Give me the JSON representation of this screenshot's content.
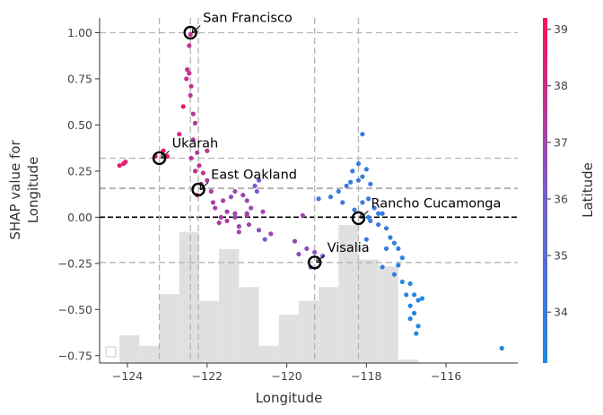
{
  "chart_data": {
    "type": "scatter",
    "title": "",
    "xlabel": "Longitude",
    "ylabel_lines": [
      "SHAP value for",
      "Longitude"
    ],
    "xlim": [
      -124.7,
      -114.2
    ],
    "ylim": [
      -0.79,
      1.08
    ],
    "x_ticks": [
      -124,
      -122,
      -120,
      -118,
      -116
    ],
    "x_tick_labels": [
      "−124",
      "−122",
      "−120",
      "−118",
      "−116"
    ],
    "y_ticks": [
      -0.75,
      -0.5,
      -0.25,
      0.0,
      0.25,
      0.5,
      0.75,
      1.0
    ],
    "y_tick_labels": [
      "−0.75",
      "−0.50",
      "−0.25",
      "0.00",
      "0.25",
      "0.50",
      "0.75",
      "1.00"
    ],
    "baseline_y": 0.0,
    "colorbar": {
      "label": "Latitude",
      "range": [
        33.1,
        39.2
      ],
      "ticks": [
        34,
        35,
        36,
        37,
        38,
        39
      ],
      "tick_labels": [
        "34",
        "35",
        "36",
        "37",
        "38",
        "39"
      ],
      "color_low": "#1e88e5",
      "color_high": "#ff0d57"
    },
    "highlight_points": [
      {
        "label": "San Francisco",
        "x": -122.42,
        "y": 1.0,
        "ref_y": 1.0
      },
      {
        "label": "Ukarah",
        "x": -123.2,
        "y": 0.32,
        "ref_y": 0.32
      },
      {
        "label": "East Oakland",
        "x": -122.22,
        "y": 0.15,
        "ref_y": 0.155
      },
      {
        "label": "Rancho Cucamonga",
        "x": -118.2,
        "y": -0.005,
        "ref_y": 0.158
      },
      {
        "label": "Visalia",
        "x": -119.3,
        "y": -0.245,
        "ref_y": -0.245
      }
    ],
    "histogram": {
      "edges": [
        -124.2,
        -123.7,
        -123.2,
        -122.7,
        -122.2,
        -121.7,
        -121.2,
        -120.7,
        -120.2,
        -119.7,
        -119.2,
        -118.7,
        -118.2,
        -117.7,
        -117.2,
        -116.7
      ],
      "heights": [
        0.08,
        0.05,
        0.2,
        0.38,
        0.18,
        0.33,
        0.22,
        0.05,
        0.14,
        0.18,
        0.22,
        0.4,
        0.3,
        0.28,
        0.01
      ],
      "color": "#e0e0e0"
    },
    "series": [
      {
        "points": [
          [
            -124.1,
            0.29,
            38.7
          ],
          [
            -124.2,
            0.28,
            38.6
          ],
          [
            -124.05,
            0.3,
            38.4
          ],
          [
            -123.3,
            0.33,
            38.6
          ],
          [
            -123.1,
            0.36,
            38.9
          ],
          [
            -123.0,
            0.33,
            38.5
          ],
          [
            -122.7,
            0.45,
            38.3
          ],
          [
            -122.6,
            0.6,
            38.7
          ],
          [
            -122.52,
            0.75,
            37.8
          ],
          [
            -122.5,
            0.8,
            37.8
          ],
          [
            -122.45,
            0.78,
            37.9
          ],
          [
            -122.42,
            0.99,
            37.8
          ],
          [
            -122.45,
            0.93,
            37.7
          ],
          [
            -122.4,
            0.71,
            37.8
          ],
          [
            -122.42,
            0.66,
            37.5
          ],
          [
            -122.35,
            0.56,
            37.6
          ],
          [
            -122.3,
            0.51,
            37.5
          ],
          [
            -122.35,
            0.42,
            37.4
          ],
          [
            -122.25,
            0.35,
            37.4
          ],
          [
            -122.4,
            0.32,
            37.7
          ],
          [
            -122.2,
            0.28,
            37.8
          ],
          [
            -122.1,
            0.24,
            37.9
          ],
          [
            -122.0,
            0.36,
            37.7
          ],
          [
            -122.3,
            0.25,
            37.6
          ],
          [
            -122.15,
            0.18,
            37.5
          ],
          [
            -122.25,
            0.12,
            37.8
          ],
          [
            -122.0,
            0.2,
            37.3
          ],
          [
            -121.9,
            0.14,
            37.35
          ],
          [
            -121.85,
            0.08,
            37.3
          ],
          [
            -121.6,
            0.09,
            37.3
          ],
          [
            -121.4,
            0.11,
            36.7
          ],
          [
            -121.3,
            0.14,
            36.9
          ],
          [
            -121.1,
            0.12,
            37.0
          ],
          [
            -121.0,
            0.09,
            36.8
          ],
          [
            -121.5,
            0.03,
            37.2
          ],
          [
            -121.8,
            0.05,
            37.2
          ],
          [
            -121.3,
            0.0,
            36.8
          ],
          [
            -121.2,
            -0.05,
            36.9
          ],
          [
            -121.0,
            0.02,
            37.0
          ],
          [
            -120.9,
            0.05,
            36.8
          ],
          [
            -120.8,
            0.17,
            36.2
          ],
          [
            -120.7,
            0.2,
            35.7
          ],
          [
            -120.75,
            0.14,
            36.4
          ],
          [
            -120.6,
            0.03,
            37.0
          ],
          [
            -120.7,
            -0.07,
            36.4
          ],
          [
            -120.55,
            -0.12,
            36.2
          ],
          [
            -120.4,
            -0.09,
            37.0
          ],
          [
            -121.2,
            -0.08,
            37.0
          ],
          [
            -121.5,
            -0.02,
            37.4
          ],
          [
            -121.7,
            -0.03,
            37.3
          ],
          [
            -121.65,
            0.0,
            37.2
          ],
          [
            -121.0,
            0.01,
            37.3
          ],
          [
            -119.8,
            -0.13,
            36.8
          ],
          [
            -119.5,
            -0.17,
            36.7
          ],
          [
            -119.7,
            -0.2,
            36.6
          ],
          [
            -119.3,
            -0.19,
            36.3
          ],
          [
            -119.6,
            0.01,
            37.0
          ],
          [
            -119.4,
            -0.27,
            36.4
          ],
          [
            -119.1,
            -0.21,
            35.4
          ],
          [
            -121.3,
            0.02,
            37.0
          ],
          [
            -120.95,
            -0.04,
            37.1
          ]
        ]
      },
      {
        "points": [
          [
            -119.2,
            0.1,
            34.1
          ],
          [
            -118.9,
            0.11,
            34.0
          ],
          [
            -118.7,
            0.14,
            34.1
          ],
          [
            -118.5,
            0.17,
            34.1
          ],
          [
            -118.4,
            0.19,
            34.0
          ],
          [
            -118.35,
            0.25,
            34.1
          ],
          [
            -118.2,
            0.29,
            34.0
          ],
          [
            -118.0,
            0.26,
            33.9
          ],
          [
            -118.1,
            0.45,
            34.0
          ],
          [
            -118.2,
            0.2,
            34.2
          ],
          [
            -118.1,
            0.22,
            34.2
          ],
          [
            -117.9,
            0.18,
            34.1
          ],
          [
            -117.95,
            0.1,
            34.1
          ],
          [
            -118.1,
            0.08,
            34.0
          ],
          [
            -117.8,
            0.05,
            34.0
          ],
          [
            -117.7,
            0.02,
            33.8
          ],
          [
            -117.95,
            0.0,
            33.7
          ],
          [
            -117.6,
            0.02,
            34.0
          ],
          [
            -117.7,
            -0.04,
            34.1
          ],
          [
            -117.5,
            -0.06,
            33.8
          ],
          [
            -117.4,
            -0.11,
            33.7
          ],
          [
            -117.3,
            -0.14,
            33.9
          ],
          [
            -117.2,
            -0.17,
            33.7
          ],
          [
            -117.1,
            -0.22,
            33.6
          ],
          [
            -117.2,
            -0.26,
            33.5
          ],
          [
            -117.3,
            -0.31,
            33.8
          ],
          [
            -117.1,
            -0.35,
            33.4
          ],
          [
            -116.9,
            -0.36,
            33.3
          ],
          [
            -117.0,
            -0.42,
            33.4
          ],
          [
            -116.8,
            -0.42,
            33.3
          ],
          [
            -116.9,
            -0.48,
            33.2
          ],
          [
            -116.7,
            -0.45,
            33.0
          ],
          [
            -116.8,
            -0.52,
            33.1
          ],
          [
            -116.7,
            -0.59,
            33.0
          ],
          [
            -116.75,
            -0.63,
            33.0
          ],
          [
            -116.9,
            -0.55,
            33.2
          ],
          [
            -116.6,
            -0.44,
            33.2
          ],
          [
            -117.5,
            -0.17,
            34.4
          ],
          [
            -117.6,
            -0.27,
            34.1
          ],
          [
            -118.0,
            -0.12,
            33.9
          ],
          [
            -117.9,
            -0.02,
            33.95
          ],
          [
            -114.6,
            -0.71,
            33.4
          ],
          [
            -118.6,
            0.08,
            34.5
          ],
          [
            -118.3,
            0.04,
            34.2
          ]
        ]
      }
    ]
  }
}
